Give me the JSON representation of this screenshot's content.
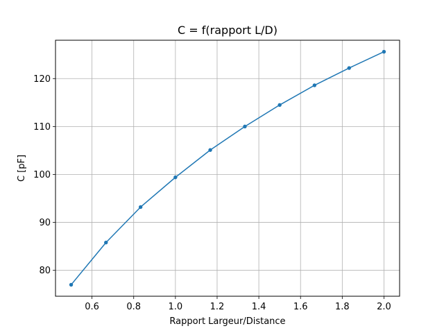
{
  "chart_data": {
    "type": "line",
    "title": "C = f(rapport L/D)",
    "xlabel": "Rapport Largeur/Distance",
    "ylabel": "C [pF]",
    "xlim": [
      0.425,
      2.075
    ],
    "ylim": [
      74.6,
      128.0
    ],
    "xticks": [
      0.6,
      0.8,
      1.0,
      1.2,
      1.4,
      1.6,
      1.8,
      2.0
    ],
    "xtick_labels": [
      "0.6",
      "0.8",
      "1.0",
      "1.2",
      "1.4",
      "1.6",
      "1.8",
      "2.0"
    ],
    "yticks": [
      80,
      90,
      100,
      110,
      120
    ],
    "ytick_labels": [
      "80",
      "90",
      "100",
      "110",
      "120"
    ],
    "grid": true,
    "series": [
      {
        "color": "#1f77b4",
        "marker": "circle",
        "x": [
          0.5,
          0.667,
          0.833,
          1.0,
          1.167,
          1.333,
          1.5,
          1.667,
          1.833,
          2.0
        ],
        "y": [
          77.0,
          85.8,
          93.2,
          99.4,
          105.1,
          110.0,
          114.5,
          118.6,
          122.2,
          125.6
        ]
      }
    ]
  }
}
